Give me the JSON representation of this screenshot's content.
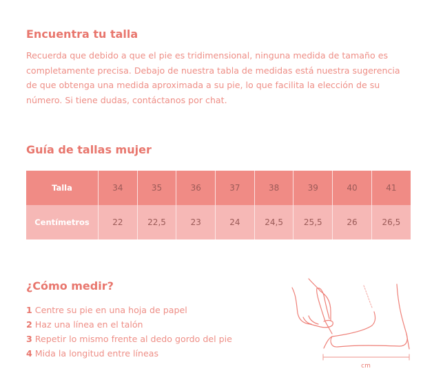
{
  "intro": {
    "title": "Encuentra tu talla",
    "body": "Recuerda que debido a que el pie es tridimensional, ninguna medida de tamaño es completamente precisa. Debajo de nuestra tabla de medidas está nuestra sugerencia de que obtenga una medida aproximada a su pie, lo que facilita la elección de su número. Si tiene dudas, contáctanos por chat."
  },
  "guide": {
    "title": "Guía de tallas mujer",
    "rows": [
      {
        "label": "Talla",
        "values": [
          "34",
          "35",
          "36",
          "37",
          "38",
          "39",
          "40",
          "41"
        ]
      },
      {
        "label": "Centímetros",
        "values": [
          "22",
          "22,5",
          "23",
          "24",
          "24,5",
          "25,5",
          "26",
          "26,5"
        ]
      }
    ]
  },
  "measure": {
    "title": "¿Cómo medir?",
    "steps": [
      {
        "n": "1",
        "text": "Centre su pie en una hoja de papel"
      },
      {
        "n": "2",
        "text": "Haz una línea en el talón"
      },
      {
        "n": "3",
        "text": "Repetir lo mismo frente al dedo gordo del pie"
      },
      {
        "n": "4",
        "text": "Mida la longitud entre líneas"
      }
    ],
    "unit_label": "cm"
  },
  "colors": {
    "accent": "#e8766d",
    "header_row": "#f08b85",
    "cm_row": "#f6b8b6"
  }
}
